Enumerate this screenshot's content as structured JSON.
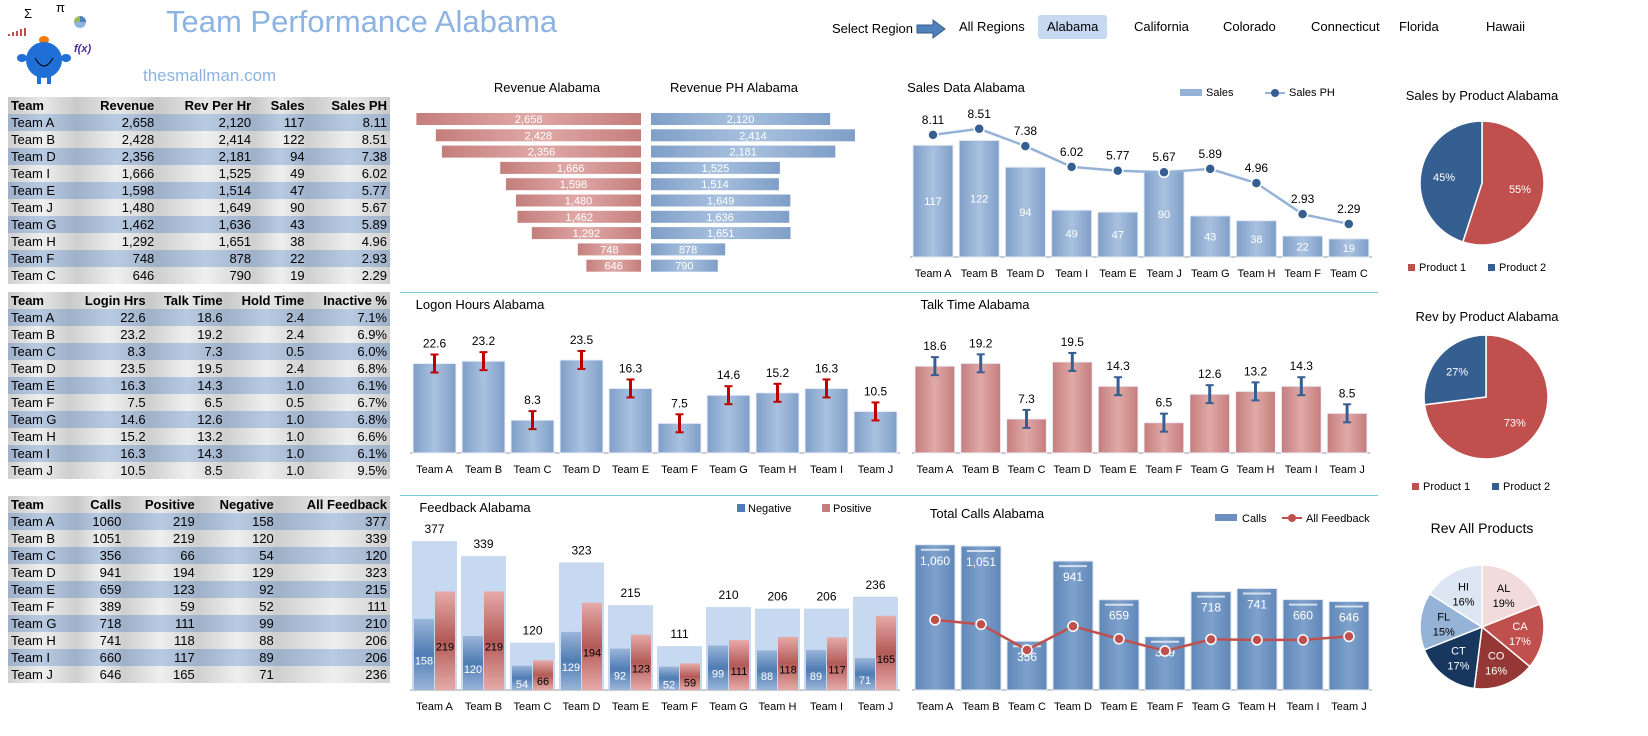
{
  "header": {
    "title": "Team Performance Alabama",
    "site": "thesmallman.com",
    "select_label": "Select Region"
  },
  "regions": [
    {
      "label": "All Regions",
      "selected": false
    },
    {
      "label": "Alabama",
      "selected": true
    },
    {
      "label": "California",
      "selected": false
    },
    {
      "label": "Colorado",
      "selected": false
    },
    {
      "label": "Connecticut",
      "selected": false
    },
    {
      "label": "Florida",
      "selected": false
    },
    {
      "label": "Hawaii",
      "selected": false
    }
  ],
  "tables": {
    "revenue": {
      "headers": [
        "Team",
        "Revenue",
        "Rev Per Hr",
        "Sales",
        "Sales PH"
      ],
      "rows": [
        [
          "Team A",
          "2,658",
          "2,120",
          "117",
          "8.11"
        ],
        [
          "Team B",
          "2,428",
          "2,414",
          "122",
          "8.51"
        ],
        [
          "Team D",
          "2,356",
          "2,181",
          "94",
          "7.38"
        ],
        [
          "Team I",
          "1,666",
          "1,525",
          "49",
          "6.02"
        ],
        [
          "Team E",
          "1,598",
          "1,514",
          "47",
          "5.77"
        ],
        [
          "Team J",
          "1,480",
          "1,649",
          "90",
          "5.67"
        ],
        [
          "Team G",
          "1,462",
          "1,636",
          "43",
          "5.89"
        ],
        [
          "Team H",
          "1,292",
          "1,651",
          "38",
          "4.96"
        ],
        [
          "Team F",
          "748",
          "878",
          "22",
          "2.93"
        ],
        [
          "Team C",
          "646",
          "790",
          "19",
          "2.29"
        ]
      ]
    },
    "hours": {
      "headers": [
        "Team",
        "Login Hrs",
        "Talk Time",
        "Hold Time",
        "Inactive %"
      ],
      "rows": [
        [
          "Team A",
          "22.6",
          "18.6",
          "2.4",
          "7.1%"
        ],
        [
          "Team B",
          "23.2",
          "19.2",
          "2.4",
          "6.9%"
        ],
        [
          "Team C",
          "8.3",
          "7.3",
          "0.5",
          "6.0%"
        ],
        [
          "Team D",
          "23.5",
          "19.5",
          "2.4",
          "6.8%"
        ],
        [
          "Team E",
          "16.3",
          "14.3",
          "1.0",
          "6.1%"
        ],
        [
          "Team F",
          "7.5",
          "6.5",
          "0.5",
          "6.7%"
        ],
        [
          "Team G",
          "14.6",
          "12.6",
          "1.0",
          "6.8%"
        ],
        [
          "Team H",
          "15.2",
          "13.2",
          "1.0",
          "6.6%"
        ],
        [
          "Team I",
          "16.3",
          "14.3",
          "1.0",
          "6.1%"
        ],
        [
          "Team J",
          "10.5",
          "8.5",
          "1.0",
          "9.5%"
        ]
      ]
    },
    "calls": {
      "headers": [
        "Team",
        "Calls",
        "Positive",
        "Negative",
        "All Feedback"
      ],
      "rows": [
        [
          "Team A",
          "1060",
          "219",
          "158",
          "377"
        ],
        [
          "Team B",
          "1051",
          "219",
          "120",
          "339"
        ],
        [
          "Team C",
          "356",
          "66",
          "54",
          "120"
        ],
        [
          "Team D",
          "941",
          "194",
          "129",
          "323"
        ],
        [
          "Team E",
          "659",
          "123",
          "92",
          "215"
        ],
        [
          "Team F",
          "389",
          "59",
          "52",
          "111"
        ],
        [
          "Team G",
          "718",
          "111",
          "99",
          "210"
        ],
        [
          "Team H",
          "741",
          "118",
          "88",
          "206"
        ],
        [
          "Team I",
          "660",
          "117",
          "89",
          "206"
        ],
        [
          "Team J",
          "646",
          "165",
          "71",
          "236"
        ]
      ]
    }
  },
  "colors": {
    "blue_bar": "#95b3d7",
    "red_bar": "#d99694",
    "product1": "#c0504d",
    "product2": "#365f91",
    "title": "#8db3e2"
  },
  "chart_data": [
    {
      "id": "revenue",
      "type": "bar",
      "orientation": "horizontal",
      "title": "Revenue Alabama",
      "categories": [
        "Team A",
        "Team B",
        "Team D",
        "Team I",
        "Team E",
        "Team J",
        "Team G",
        "Team H",
        "Team F",
        "Team C"
      ],
      "values": [
        2658,
        2428,
        2356,
        1666,
        1598,
        1480,
        1462,
        1292,
        748,
        646
      ],
      "labels": [
        "2,658",
        "2,428",
        "2,356",
        "1,666",
        "1,598",
        "1,480",
        "1,462",
        "1,292",
        "748",
        "646"
      ]
    },
    {
      "id": "revenue_ph",
      "type": "bar",
      "orientation": "horizontal",
      "title": "Revenue PH Alabama",
      "categories": [
        "Team A",
        "Team B",
        "Team D",
        "Team I",
        "Team E",
        "Team J",
        "Team G",
        "Team H",
        "Team F",
        "Team C"
      ],
      "values": [
        2120,
        2414,
        2181,
        1525,
        1514,
        1649,
        1636,
        1651,
        878,
        790
      ],
      "labels": [
        "2,120",
        "2,414",
        "2,181",
        "1,525",
        "1,514",
        "1,649",
        "1,636",
        "1,651",
        "878",
        "790"
      ]
    },
    {
      "id": "sales",
      "type": "bar",
      "title": "Sales Data Alabama",
      "categories": [
        "Team A",
        "Team B",
        "Team D",
        "Team I",
        "Team E",
        "Team J",
        "Team G",
        "Team H",
        "Team F",
        "Team C"
      ],
      "series": [
        {
          "name": "Sales",
          "type": "bar",
          "values": [
            117,
            122,
            94,
            49,
            47,
            90,
            43,
            38,
            22,
            19
          ]
        },
        {
          "name": "Sales PH",
          "type": "line",
          "values": [
            8.11,
            8.51,
            7.38,
            6.02,
            5.77,
            5.67,
            5.89,
            4.96,
            2.93,
            2.29
          ]
        }
      ],
      "legend": "top-right"
    },
    {
      "id": "logon",
      "type": "bar",
      "title": "Logon Hours Alabama",
      "categories": [
        "Team A",
        "Team B",
        "Team C",
        "Team D",
        "Team E",
        "Team F",
        "Team G",
        "Team H",
        "Team I",
        "Team J"
      ],
      "values": [
        22.6,
        23.2,
        8.3,
        23.5,
        16.3,
        7.5,
        14.6,
        15.2,
        16.3,
        10.5
      ],
      "error_bars": true
    },
    {
      "id": "talk",
      "type": "bar",
      "title": "Talk Time Alabama",
      "categories": [
        "Team A",
        "Team B",
        "Team C",
        "Team D",
        "Team E",
        "Team F",
        "Team G",
        "Team H",
        "Team I",
        "Team J"
      ],
      "values": [
        18.6,
        19.2,
        7.3,
        19.5,
        14.3,
        6.5,
        12.6,
        13.2,
        14.3,
        8.5
      ],
      "error_bars": true
    },
    {
      "id": "feedback",
      "type": "bar",
      "title": "Feedback Alabama",
      "categories": [
        "Team A",
        "Team B",
        "Team C",
        "Team D",
        "Team E",
        "Team F",
        "Team G",
        "Team H",
        "Team I",
        "Team J"
      ],
      "totals": [
        377,
        339,
        120,
        323,
        215,
        111,
        210,
        206,
        206,
        236
      ],
      "series": [
        {
          "name": "Negative",
          "values": [
            158,
            120,
            54,
            129,
            92,
            52,
            99,
            88,
            89,
            71
          ]
        },
        {
          "name": "Positive",
          "values": [
            219,
            219,
            66,
            194,
            123,
            59,
            111,
            118,
            117,
            165
          ]
        }
      ],
      "legend": "top-right"
    },
    {
      "id": "calls",
      "type": "bar",
      "title": "Total Calls Alabama",
      "categories": [
        "Team A",
        "Team B",
        "Team C",
        "Team D",
        "Team E",
        "Team F",
        "Team G",
        "Team H",
        "Team I",
        "Team J"
      ],
      "series": [
        {
          "name": "Calls",
          "type": "bar",
          "values": [
            1060,
            1051,
            356,
            941,
            659,
            389,
            718,
            741,
            660,
            646
          ],
          "labels": [
            "1,060",
            "1,051",
            "356",
            "941",
            "659",
            "389",
            "718",
            "741",
            "660",
            "646"
          ]
        },
        {
          "name": "All Feedback",
          "type": "line",
          "values": [
            377,
            339,
            120,
            323,
            215,
            111,
            210,
            206,
            206,
            236
          ]
        }
      ],
      "legend": "top-right"
    },
    {
      "id": "pie_sales",
      "type": "pie",
      "title": "Sales by Product Alabama",
      "slices": [
        {
          "name": "Product 1",
          "value": 55,
          "label": "55%",
          "color": "#c0504d"
        },
        {
          "name": "Product 2",
          "value": 45,
          "label": "45%",
          "color": "#365f91"
        }
      ],
      "legend": "bottom"
    },
    {
      "id": "pie_rev",
      "type": "pie",
      "title": "Rev by Product Alabama",
      "slices": [
        {
          "name": "Product 1",
          "value": 73,
          "label": "73%",
          "color": "#c0504d"
        },
        {
          "name": "Product 2",
          "value": 27,
          "label": "27%",
          "color": "#365f91"
        }
      ],
      "legend": "bottom"
    },
    {
      "id": "pie_all",
      "type": "pie",
      "title": "Rev All Products",
      "slices": [
        {
          "name": "AL",
          "value": 19,
          "label": "19%",
          "color": "#f2dcdb"
        },
        {
          "name": "CA",
          "value": 17,
          "label": "17%",
          "color": "#c0504d"
        },
        {
          "name": "CO",
          "value": 16,
          "label": "16%",
          "color": "#953735"
        },
        {
          "name": "CT",
          "value": 17,
          "label": "17%",
          "color": "#17375e"
        },
        {
          "name": "FL",
          "value": 15,
          "label": "15%",
          "color": "#95b3d7"
        },
        {
          "name": "HI",
          "value": 16,
          "label": "16%",
          "color": "#dce6f2"
        }
      ]
    }
  ]
}
